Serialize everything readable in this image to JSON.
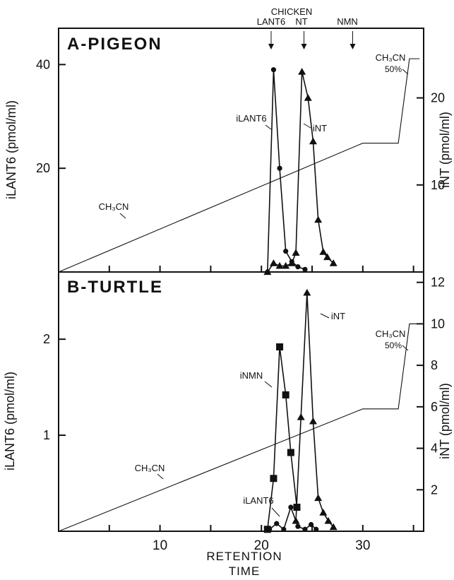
{
  "chart_data": [
    {
      "type": "line",
      "panel_label": "A-PIGEON",
      "xlim": [
        0,
        36
      ],
      "left_axis": {
        "label": "iLANT6 (pmol/ml)",
        "ylim": [
          0,
          47
        ],
        "ticks": [
          20,
          40
        ]
      },
      "right_axis": {
        "label": "iNT (pmol/ml)",
        "ylim": [
          0,
          28
        ],
        "ticks": [
          10,
          20
        ]
      },
      "top_markers": [
        {
          "label": "LANT6",
          "x": 21
        },
        {
          "label": "CHICKEN NT",
          "x": 24.2
        },
        {
          "label": "NMN",
          "x": 29
        }
      ],
      "series": [
        {
          "name": "iLANT6",
          "marker": "circle",
          "axis": "left",
          "x": [
            20.6,
            21.2,
            21.8,
            22.4,
            23.0,
            23.6,
            24.3
          ],
          "y": [
            0,
            39,
            20,
            4,
            2,
            1,
            0.5
          ]
        },
        {
          "name": "iNT",
          "marker": "triangle",
          "axis": "right",
          "x": [
            20.6,
            21.2,
            21.8,
            22.4,
            23.0,
            23.4,
            24.0,
            24.6,
            25.1,
            25.6,
            26.1,
            26.5,
            27.1
          ],
          "y": [
            0,
            1,
            0.7,
            0.7,
            1,
            2.2,
            23,
            20,
            15,
            6,
            2.3,
            1.7,
            1
          ]
        },
        {
          "name": "CH3CN",
          "marker": "none",
          "axis": "right",
          "x": [
            0,
            30,
            33.5,
            34.6,
            35.6
          ],
          "y": [
            0,
            14.8,
            14.8,
            24.5,
            24.5
          ]
        }
      ],
      "annotations": [
        "iLANT6",
        "iNT",
        "CH3CN",
        "CH3CN 50%"
      ]
    },
    {
      "type": "line",
      "panel_label": "B-TURTLE",
      "xlim": [
        0,
        36
      ],
      "left_axis": {
        "label": "iNMN (pmol/ml) iLANT6 (pmol/ml)",
        "ylim": [
          0,
          2.7
        ],
        "ticks": [
          1,
          2
        ]
      },
      "right_axis": {
        "label": "iNT (pmol/ml)",
        "ylim": [
          0,
          12.5
        ],
        "ticks": [
          2,
          4,
          6,
          8,
          10,
          12
        ]
      },
      "x_axis": {
        "label": "RETENTION TIME",
        "ticks": [
          10,
          20,
          30
        ]
      },
      "series": [
        {
          "name": "iNMN",
          "marker": "square",
          "axis": "left",
          "x": [
            20.6,
            21.2,
            21.8,
            22.4,
            22.9,
            23.5
          ],
          "y": [
            0.02,
            0.55,
            1.92,
            1.42,
            0.82,
            0.25
          ]
        },
        {
          "name": "iLANT6",
          "marker": "circle",
          "axis": "left",
          "x": [
            20.8,
            21.5,
            22.2,
            22.9,
            23.6,
            24.3,
            24.9,
            25.4
          ],
          "y": [
            0.02,
            0.08,
            0.02,
            0.25,
            0.05,
            0.02,
            0.07,
            0.02
          ]
        },
        {
          "name": "iNT",
          "marker": "triangle",
          "axis": "right",
          "x": [
            23.4,
            23.9,
            24.5,
            25.1,
            25.6,
            26.1,
            26.6,
            27.1
          ],
          "y": [
            0.5,
            5.5,
            11.5,
            5.3,
            1.6,
            0.9,
            0.5,
            0.2
          ]
        },
        {
          "name": "CH3CN",
          "marker": "none",
          "axis": "right",
          "x": [
            0,
            30,
            33.5,
            34.6,
            35.6
          ],
          "y": [
            0,
            5.9,
            5.9,
            10,
            10
          ]
        }
      ],
      "annotations": [
        "iNMN",
        "iLANT6",
        "iNT",
        "CH3CN",
        "CH3CN 50%"
      ]
    }
  ]
}
